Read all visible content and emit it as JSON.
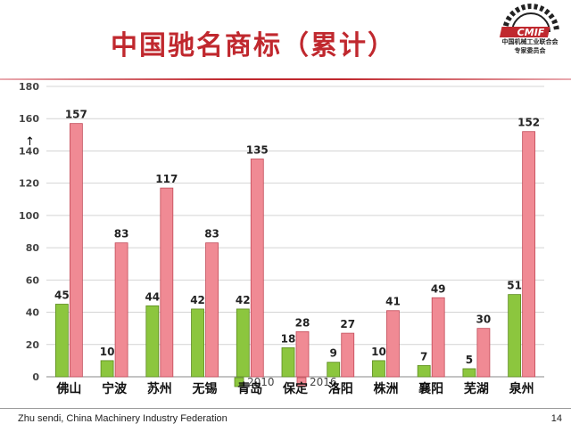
{
  "slide": {
    "title": "中国驰名商标（累计）",
    "footer": "Zhu sendi, China Machinery Industry Federation",
    "page_number": "14"
  },
  "logo": {
    "mark": "CMIF",
    "org_name": "中国机械工业联合会",
    "sub_name": "专家委员会"
  },
  "colors": {
    "title": "#c0282e",
    "series_2010": "#8cc63e",
    "series_2016": "#f08a94"
  },
  "chart_data": {
    "type": "bar",
    "categories": [
      "佛山",
      "宁波",
      "苏州",
      "无锡",
      "青岛",
      "保定",
      "洛阳",
      "株洲",
      "襄阳",
      "芜湖",
      "泉州"
    ],
    "series": [
      {
        "name": "2010",
        "values": [
          45,
          10,
          44,
          42,
          42,
          18,
          9,
          10,
          7,
          5,
          51
        ]
      },
      {
        "name": "2016",
        "values": [
          157,
          83,
          117,
          83,
          135,
          28,
          27,
          41,
          49,
          30,
          152
        ]
      }
    ],
    "ylim": [
      0,
      180
    ],
    "yticks": [
      0,
      20,
      40,
      60,
      80,
      100,
      120,
      140,
      160,
      180
    ],
    "grid": true,
    "legend": "bottom-center",
    "data_labels": true
  }
}
